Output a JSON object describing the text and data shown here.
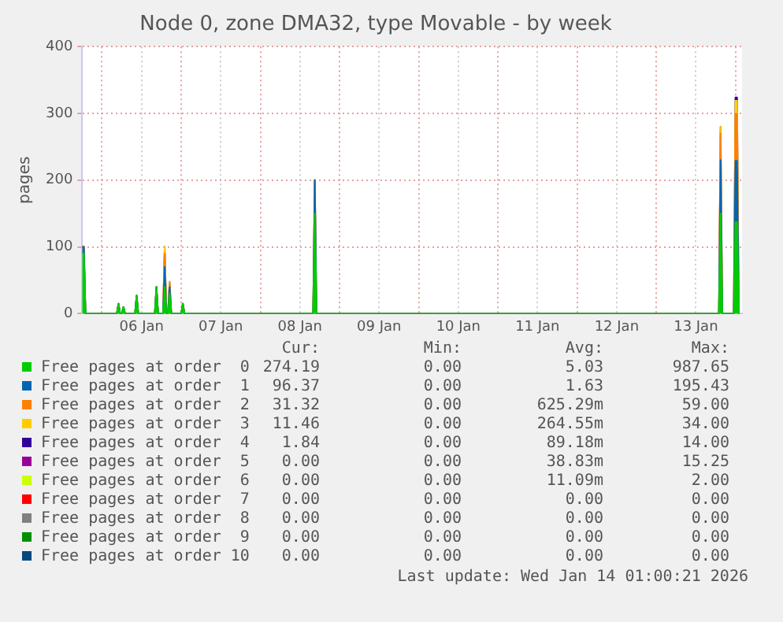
{
  "chart_data": {
    "type": "area",
    "title": "Node 0, zone DMA32, type Movable - by week",
    "ylabel": "pages",
    "stacked": true,
    "grid": true,
    "legend": "bottom",
    "marker": "none",
    "x": [
      "2026-01-05T18:00",
      "2026-01-05T18:30",
      "2026-01-05T19:00",
      "2026-01-06T04:30",
      "2026-01-06T05:00",
      "2026-01-06T05:30",
      "2026-01-06T06:00",
      "2026-01-06T06:30",
      "2026-01-06T07:00",
      "2026-01-06T10:00",
      "2026-01-06T10:30",
      "2026-01-06T11:00",
      "2026-01-06T16:00",
      "2026-01-06T16:30",
      "2026-01-06T17:00",
      "2026-01-06T18:30",
      "2026-01-06T19:00",
      "2026-01-06T19:30",
      "2026-01-06T20:00",
      "2026-01-06T20:30",
      "2026-01-06T21:00",
      "2026-01-07T00:00",
      "2026-01-07T00:30",
      "2026-01-07T01:00",
      "2026-01-08T16:00",
      "2026-01-08T16:30",
      "2026-01-08T17:00",
      "2026-01-13T19:00",
      "2026-01-13T19:30",
      "2026-01-13T20:00",
      "2026-01-13T23:30",
      "2026-01-14T00:00",
      "2026-01-14T00:30",
      "2026-01-14T01:00"
    ],
    "xlim": [
      "2026-01-05T18:00",
      "2026-01-14T02:00"
    ],
    "xticks": [
      {
        "value": "2026-01-06",
        "label": null
      },
      {
        "value": "2026-01-06T12:00",
        "label": "06 Jan"
      },
      {
        "value": "2026-01-07",
        "label": null
      },
      {
        "value": "2026-01-07T12:00",
        "label": "07 Jan"
      },
      {
        "value": "2026-01-08",
        "label": null
      },
      {
        "value": "2026-01-08T12:00",
        "label": "08 Jan"
      },
      {
        "value": "2026-01-09",
        "label": null
      },
      {
        "value": "2026-01-09T12:00",
        "label": "09 Jan"
      },
      {
        "value": "2026-01-10",
        "label": null
      },
      {
        "value": "2026-01-10T12:00",
        "label": "10 Jan"
      },
      {
        "value": "2026-01-11",
        "label": null
      },
      {
        "value": "2026-01-11T12:00",
        "label": "11 Jan"
      },
      {
        "value": "2026-01-12",
        "label": null
      },
      {
        "value": "2026-01-12T12:00",
        "label": "12 Jan"
      },
      {
        "value": "2026-01-13",
        "label": null
      },
      {
        "value": "2026-01-13T12:00",
        "label": "13 Jan"
      },
      {
        "value": "2026-01-14",
        "label": null
      }
    ],
    "ylim": [
      0,
      400
    ],
    "yticks": [
      0,
      100,
      200,
      300,
      400
    ],
    "series": [
      {
        "name": "Free pages at order  0",
        "color": "#00cc00",
        "values": [
          90,
          90,
          0,
          0,
          15,
          0,
          0,
          10,
          0,
          0,
          27,
          0,
          0,
          40,
          0,
          0,
          40,
          0,
          0,
          30,
          0,
          0,
          15,
          0,
          0,
          150,
          0,
          0,
          150,
          0,
          0,
          137,
          137,
          0
        ]
      },
      {
        "name": "Free pages at order  1",
        "color": "#0066b3",
        "values": [
          10,
          10,
          0,
          0,
          0,
          0,
          0,
          0,
          0,
          0,
          0,
          0,
          0,
          0,
          0,
          0,
          30,
          0,
          0,
          10,
          0,
          0,
          0,
          0,
          0,
          50,
          0,
          0,
          80,
          0,
          0,
          92,
          92,
          0
        ]
      },
      {
        "name": "Free pages at order  2",
        "color": "#ff8000",
        "values": [
          0,
          0,
          0,
          0,
          0,
          0,
          0,
          0,
          0,
          0,
          0,
          0,
          0,
          0,
          0,
          0,
          20,
          0,
          0,
          5,
          0,
          0,
          0,
          0,
          0,
          0,
          0,
          0,
          40,
          0,
          0,
          70,
          70,
          0
        ]
      },
      {
        "name": "Free pages at order  3",
        "color": "#ffcc00",
        "values": [
          0,
          0,
          0,
          0,
          0,
          0,
          0,
          0,
          0,
          0,
          0,
          0,
          0,
          0,
          0,
          0,
          10,
          0,
          0,
          3,
          0,
          0,
          0,
          0,
          0,
          0,
          0,
          0,
          10,
          0,
          0,
          20,
          20,
          0
        ]
      },
      {
        "name": "Free pages at order  4",
        "color": "#330099",
        "values": [
          0,
          0,
          0,
          0,
          0,
          0,
          0,
          0,
          0,
          0,
          0,
          0,
          0,
          0,
          0,
          0,
          0,
          0,
          0,
          0,
          0,
          0,
          0,
          0,
          0,
          0,
          0,
          0,
          0,
          0,
          0,
          5,
          5,
          0
        ]
      },
      {
        "name": "Free pages at order  5",
        "color": "#990099",
        "values": [
          null,
          null,
          null,
          null,
          null,
          null,
          null,
          null,
          null,
          null,
          null,
          null,
          null,
          null,
          null,
          null,
          null,
          null,
          null,
          null,
          null,
          null,
          null,
          null,
          null,
          null,
          null,
          null,
          null,
          null,
          null,
          null,
          null,
          null
        ]
      },
      {
        "name": "Free pages at order  6",
        "color": "#ccff00",
        "values": [
          null,
          null,
          null,
          null,
          null,
          null,
          null,
          null,
          null,
          null,
          null,
          null,
          null,
          null,
          null,
          null,
          null,
          null,
          null,
          null,
          null,
          null,
          null,
          null,
          null,
          null,
          null,
          null,
          null,
          null,
          null,
          null,
          null,
          null
        ]
      },
      {
        "name": "Free pages at order  7",
        "color": "#ff0000",
        "values": [
          null,
          null,
          null,
          null,
          null,
          null,
          null,
          null,
          null,
          null,
          null,
          null,
          null,
          null,
          null,
          null,
          null,
          null,
          null,
          null,
          null,
          null,
          null,
          null,
          null,
          null,
          null,
          null,
          null,
          null,
          null,
          null,
          null,
          null
        ]
      },
      {
        "name": "Free pages at order  8",
        "color": "#808080",
        "values": [
          null,
          null,
          null,
          null,
          null,
          null,
          null,
          null,
          null,
          null,
          null,
          null,
          null,
          null,
          null,
          null,
          null,
          null,
          null,
          null,
          null,
          null,
          null,
          null,
          null,
          null,
          null,
          null,
          null,
          null,
          null,
          null,
          null,
          null
        ]
      },
      {
        "name": "Free pages at order  9",
        "color": "#008f00",
        "values": [
          null,
          null,
          null,
          null,
          null,
          null,
          null,
          null,
          null,
          null,
          null,
          null,
          null,
          null,
          null,
          null,
          null,
          null,
          null,
          null,
          null,
          null,
          null,
          null,
          null,
          null,
          null,
          null,
          null,
          null,
          null,
          null,
          null,
          null
        ]
      },
      {
        "name": "Free pages at order 10",
        "color": "#00487d",
        "values": [
          null,
          null,
          null,
          null,
          null,
          null,
          null,
          null,
          null,
          null,
          null,
          null,
          null,
          null,
          null,
          null,
          null,
          null,
          null,
          null,
          null,
          null,
          null,
          null,
          null,
          null,
          null,
          null,
          null,
          null,
          null,
          null,
          null,
          null
        ]
      }
    ],
    "annotations": [
      "Cur:",
      "Min:",
      "Avg:",
      "Max:",
      "274.19",
      "0.00",
      "5.03",
      "987.65",
      "96.37",
      "0.00",
      "1.63",
      "195.43",
      "31.32",
      "0.00",
      "625.29m",
      "59.00",
      "11.46",
      "0.00",
      "264.55m",
      "34.00",
      "1.84",
      "0.00",
      "89.18m",
      "14.00",
      "0.00",
      "0.00",
      "38.83m",
      "15.25",
      "0.00",
      "0.00",
      "11.09m",
      "2.00",
      "0.00",
      "0.00",
      "0.00",
      "0.00",
      "0.00",
      "0.00",
      "0.00",
      "0.00",
      "0.00",
      "0.00",
      "0.00",
      "0.00",
      "0.00",
      "0.00",
      "0.00",
      "0.00",
      "Last update: Wed Jan 14 01:00:21 2026"
    ]
  }
}
